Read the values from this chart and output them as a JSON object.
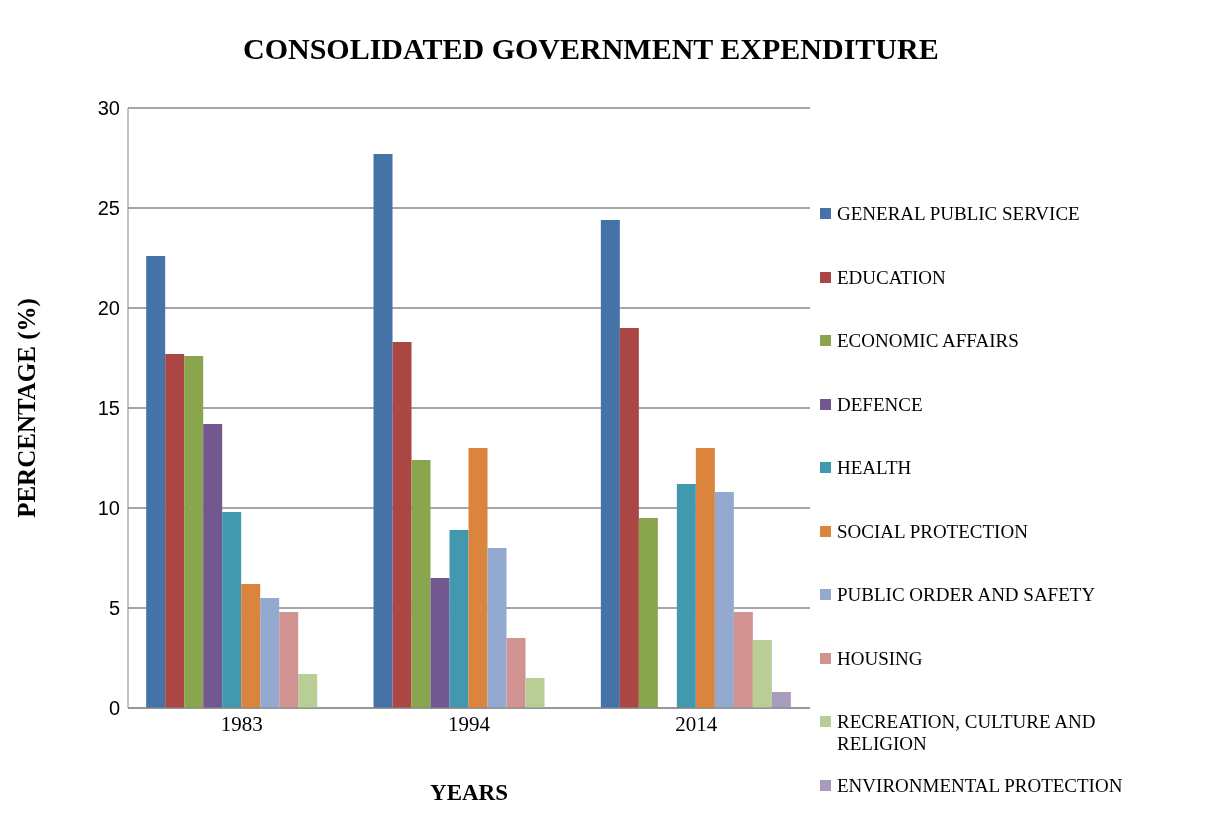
{
  "chart_data": {
    "type": "bar",
    "title": "CONSOLIDATED GOVERNMENT EXPENDITURE",
    "xlabel": "YEARS",
    "ylabel": "PERCENTAGE (%)",
    "categories": [
      "1983",
      "1994",
      "2014"
    ],
    "series": [
      {
        "name": "GENERAL PUBLIC SERVICE",
        "color": "#4572a7",
        "values": [
          22.6,
          27.7,
          24.4
        ]
      },
      {
        "name": "EDUCATION",
        "color": "#aa4643",
        "values": [
          17.7,
          18.3,
          19.0
        ]
      },
      {
        "name": "ECONOMIC AFFAIRS",
        "color": "#89a54e",
        "values": [
          17.6,
          12.4,
          9.5
        ]
      },
      {
        "name": "DEFENCE",
        "color": "#71588f",
        "values": [
          14.2,
          6.5,
          null
        ]
      },
      {
        "name": "HEALTH",
        "color": "#4198af",
        "values": [
          9.8,
          8.9,
          11.2
        ]
      },
      {
        "name": "SOCIAL PROTECTION",
        "color": "#db843d",
        "values": [
          6.2,
          13.0,
          13.0
        ]
      },
      {
        "name": "PUBLIC ORDER AND SAFETY",
        "color": "#93a9cf",
        "values": [
          5.5,
          8.0,
          10.8
        ]
      },
      {
        "name": "HOUSING",
        "color": "#d19392",
        "values": [
          4.8,
          3.5,
          4.8
        ]
      },
      {
        "name": "RECREATION, CULTURE AND RELIGION",
        "color": "#b9cd96",
        "values": [
          1.7,
          1.5,
          3.4
        ]
      },
      {
        "name": "ENVIRONMENTAL PROTECTION",
        "color": "#a99bbd",
        "values": [
          null,
          null,
          0.8
        ]
      }
    ],
    "ylim": [
      0,
      30
    ],
    "yticks": [
      0,
      5,
      10,
      15,
      20,
      25,
      30
    ],
    "grid": "y",
    "legend": "right"
  }
}
